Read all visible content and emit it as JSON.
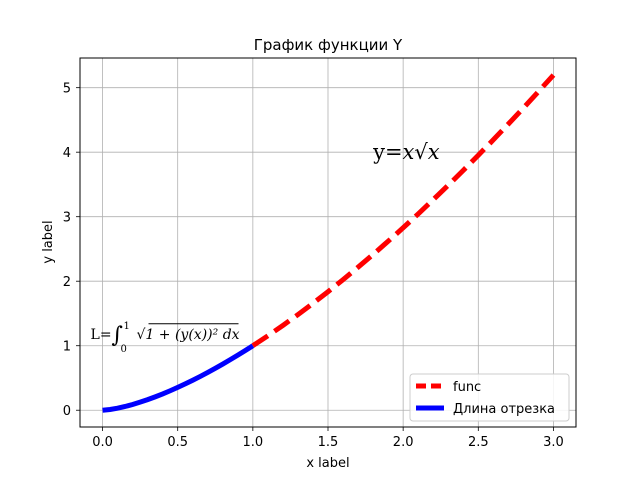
{
  "chart_data": {
    "type": "line",
    "title": "График функции Y",
    "xlabel": "x label",
    "ylabel": "y label",
    "xlim": [
      -0.15,
      3.15
    ],
    "ylim": [
      -0.26,
      5.46
    ],
    "xticks": [
      0.0,
      0.5,
      1.0,
      1.5,
      2.0,
      2.5,
      3.0
    ],
    "yticks": [
      0,
      1,
      2,
      3,
      4,
      5
    ],
    "xtick_labels": [
      "0.0",
      "0.5",
      "1.0",
      "1.5",
      "2.0",
      "2.5",
      "3.0"
    ],
    "ytick_labels": [
      "0",
      "1",
      "2",
      "3",
      "4",
      "5"
    ],
    "grid": true,
    "legend_position": "lower-right",
    "series": [
      {
        "name": "func",
        "color": "#ff0000",
        "style": "dashed",
        "x": [
          1.0,
          1.1,
          1.2,
          1.3,
          1.4,
          1.5,
          1.6,
          1.7,
          1.8,
          1.9,
          2.0,
          2.1,
          2.2,
          2.3,
          2.4,
          2.5,
          2.6,
          2.7,
          2.8,
          2.9,
          3.0
        ],
        "y": [
          1.0,
          1.154,
          1.315,
          1.482,
          1.657,
          1.837,
          2.024,
          2.217,
          2.415,
          2.619,
          2.828,
          3.043,
          3.263,
          3.488,
          3.718,
          3.953,
          4.192,
          4.437,
          4.685,
          4.939,
          5.196
        ]
      },
      {
        "name": "Длина отрезка",
        "color": "#0000ff",
        "style": "solid",
        "x": [
          0.0,
          0.05,
          0.1,
          0.15,
          0.2,
          0.25,
          0.3,
          0.35,
          0.4,
          0.45,
          0.5,
          0.55,
          0.6,
          0.65,
          0.7,
          0.75,
          0.8,
          0.85,
          0.9,
          0.95,
          1.0
        ],
        "y": [
          0.0,
          0.011,
          0.032,
          0.058,
          0.089,
          0.125,
          0.164,
          0.207,
          0.253,
          0.302,
          0.354,
          0.408,
          0.465,
          0.524,
          0.586,
          0.65,
          0.716,
          0.784,
          0.854,
          0.926,
          1.0
        ]
      }
    ],
    "annotations": [
      {
        "id": "formula_func",
        "x": 1.8,
        "y": 4.0,
        "text_prefix": "y=",
        "text_body": "x√x"
      },
      {
        "id": "formula_length",
        "x": -0.08,
        "y": 1.17,
        "text_prefix": "L=",
        "integral_upper": "1",
        "integral_lower": "0",
        "integrand": "√1 + (y(x))² dx"
      }
    ]
  }
}
